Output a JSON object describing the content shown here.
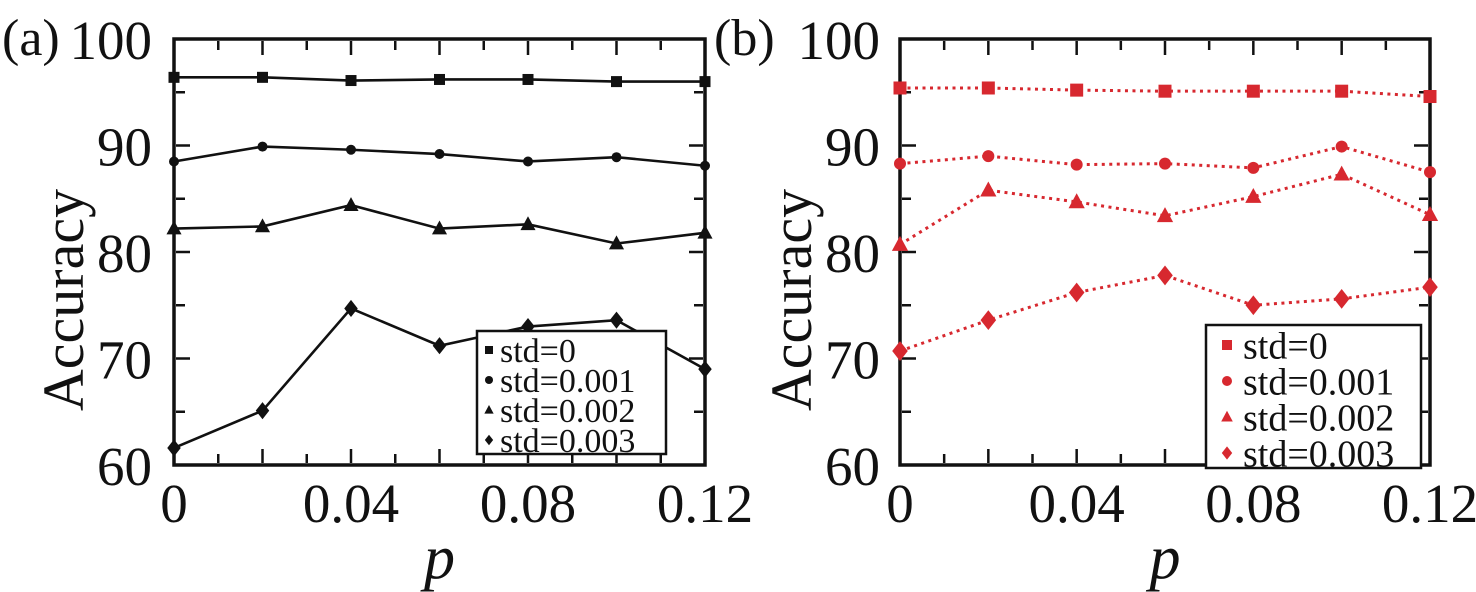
{
  "figure": {
    "background": "#ffffff",
    "axis_color": "#111111",
    "accent_red": "#d7282f"
  },
  "chart_data": [
    {
      "type": "line",
      "panel_label": "(a)",
      "color": "#111111",
      "line_style": "solid",
      "xlabel": "p",
      "ylabel": "Accuracy",
      "xlim": [
        0,
        0.12
      ],
      "ylim": [
        60,
        100
      ],
      "x_tick_values": [
        0,
        0.04,
        0.08,
        0.12
      ],
      "x_tick_labels": [
        "0",
        "0.04",
        "0.08",
        "0.12"
      ],
      "y_tick_values": [
        100,
        90,
        80,
        70,
        60
      ],
      "y_tick_labels": [
        "100",
        "90",
        "80",
        "70",
        "60"
      ],
      "x_minor_step": 0.01,
      "x_major_step": 0.02,
      "y_minor_step": 5,
      "y_major_step": 10,
      "grid": false,
      "legend_position": "inside-bottom-right",
      "x": [
        0,
        0.02,
        0.04,
        0.06,
        0.08,
        0.1,
        0.12
      ],
      "series": [
        {
          "name": "std=0",
          "marker": "square",
          "values": [
            96.4,
            96.4,
            96.1,
            96.2,
            96.2,
            96.0,
            96.0
          ]
        },
        {
          "name": "std=0.001",
          "marker": "circle",
          "values": [
            88.5,
            89.9,
            89.6,
            89.2,
            88.5,
            88.9,
            88.1
          ]
        },
        {
          "name": "std=0.002",
          "marker": "triangle",
          "values": [
            82.2,
            82.4,
            84.4,
            82.2,
            82.6,
            80.8,
            81.8
          ]
        },
        {
          "name": "std=0.003",
          "marker": "diamond",
          "values": [
            61.6,
            65.1,
            74.7,
            71.2,
            73.0,
            73.6,
            69.0
          ]
        }
      ]
    },
    {
      "type": "line",
      "panel_label": "(b)",
      "color": "#d7282f",
      "line_style": "dotted",
      "xlabel": "p",
      "ylabel": "Accuracy",
      "xlim": [
        0,
        0.12
      ],
      "ylim": [
        60,
        100
      ],
      "x_tick_values": [
        0,
        0.04,
        0.08,
        0.12
      ],
      "x_tick_labels": [
        "0",
        "0.04",
        "0.08",
        "0.12"
      ],
      "y_tick_values": [
        100,
        90,
        80,
        70,
        60
      ],
      "y_tick_labels": [
        "100",
        "90",
        "80",
        "70",
        "60"
      ],
      "x_minor_step": 0.01,
      "x_major_step": 0.02,
      "y_minor_step": 5,
      "y_major_step": 10,
      "grid": false,
      "legend_position": "inside-bottom-right",
      "x": [
        0,
        0.02,
        0.04,
        0.06,
        0.08,
        0.1,
        0.12
      ],
      "series": [
        {
          "name": "std=0",
          "marker": "square",
          "values": [
            95.4,
            95.4,
            95.2,
            95.1,
            95.1,
            95.1,
            94.6
          ]
        },
        {
          "name": "std=0.001",
          "marker": "circle",
          "values": [
            88.3,
            89.0,
            88.2,
            88.3,
            87.9,
            89.9,
            87.5
          ]
        },
        {
          "name": "std=0.002",
          "marker": "triangle",
          "values": [
            80.7,
            85.8,
            84.7,
            83.4,
            85.2,
            87.3,
            83.5
          ]
        },
        {
          "name": "std=0.003",
          "marker": "diamond",
          "values": [
            70.7,
            73.6,
            76.2,
            77.8,
            75.0,
            75.6,
            76.7
          ]
        }
      ]
    }
  ]
}
